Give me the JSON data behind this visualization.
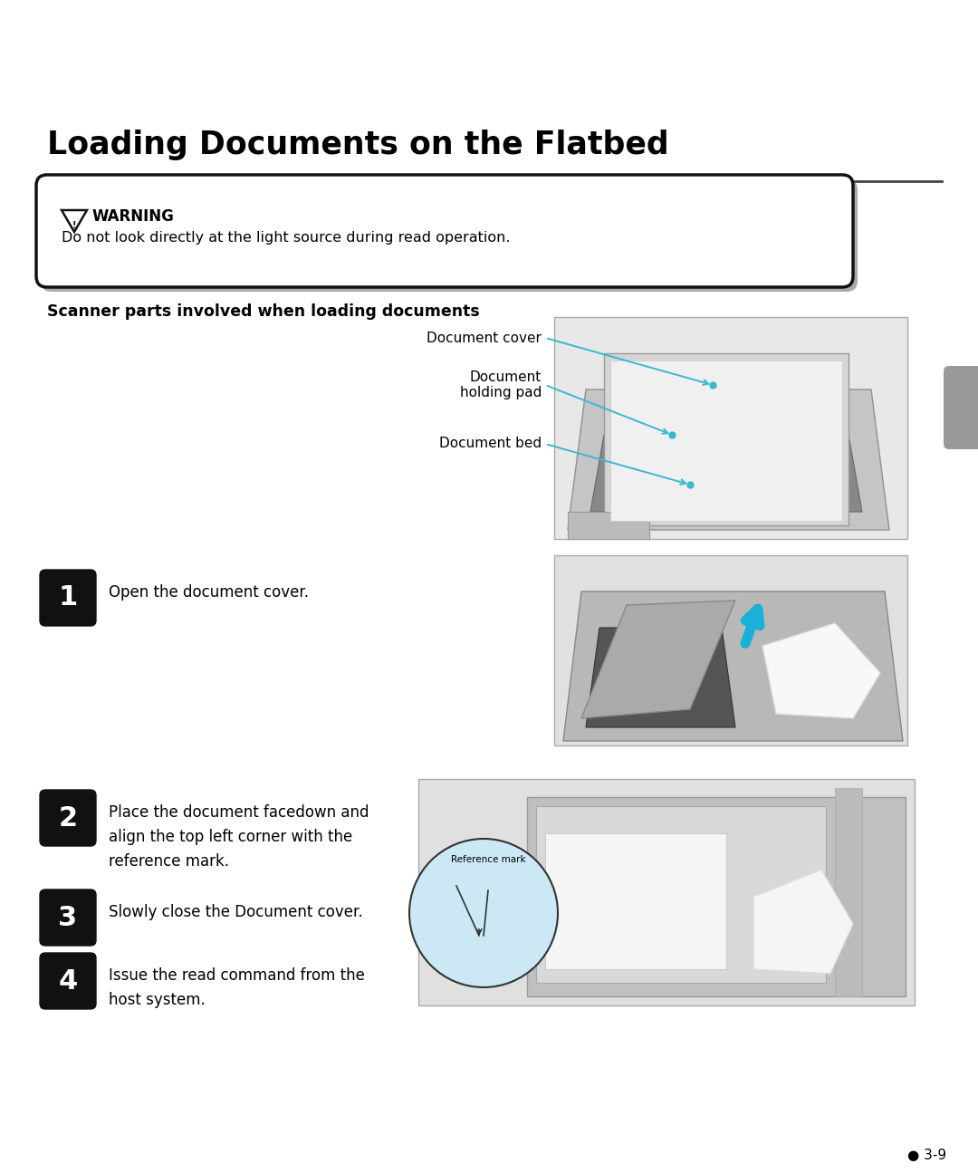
{
  "title": "Loading Documents on the Flatbed",
  "warning_header": "WARNING",
  "warning_text": "Do not look directly at the light source during read operation.",
  "section_header": "Scanner parts involved when loading documents",
  "label_doc_cover": "Document cover",
  "label_holding_pad": "Document\nholding pad",
  "label_doc_bed": "Document bed",
  "step1_text": "Open the document cover.",
  "step2_text": "Place the document facedown and\nalign the top left corner with the\nreference mark.",
  "step3_text": "Slowly close the Document cover.",
  "step4_text": "Issue the read command from the\nhost system.",
  "page_number": "● 3-9",
  "bg_color": "#ffffff",
  "text_color": "#000000",
  "arrow_color": "#3ab8d0",
  "tab_color": "#999999",
  "icon_color": "#111111",
  "img_bg": "#e8e8e8",
  "scanner_body": "#c8c8c8",
  "scanner_dark": "#888888",
  "scanner_mid": "#b0b0b0",
  "scanner_light": "#d8d8d8",
  "scanner_white": "#f0f0f0"
}
